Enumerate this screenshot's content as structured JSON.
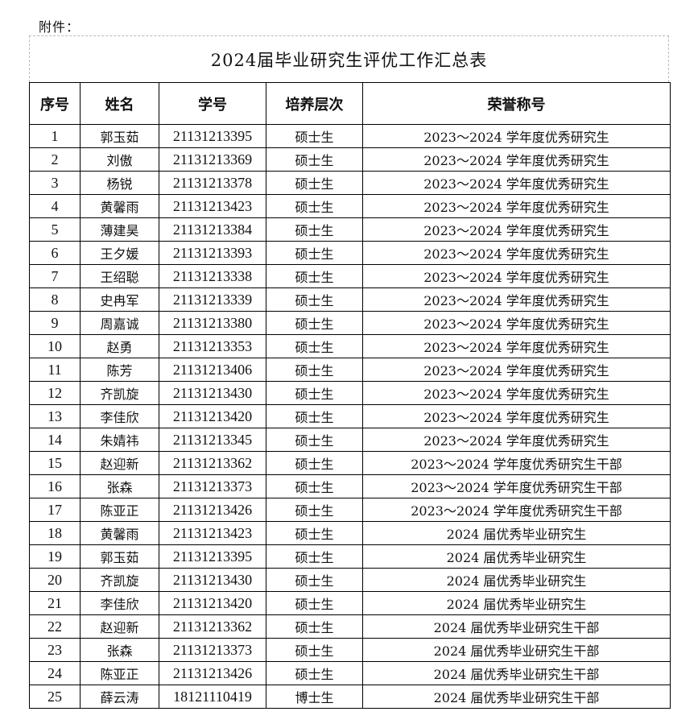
{
  "attachment_label": "附件：",
  "title": "2024届毕业研究生评优工作汇总表",
  "columns": [
    "序号",
    "姓名",
    "学号",
    "培养层次",
    "荣誉称号"
  ],
  "rows": [
    [
      "1",
      "郭玉茹",
      "21131213395",
      "硕士生",
      "2023～2024 学年度优秀研究生"
    ],
    [
      "2",
      "刘傲",
      "21131213369",
      "硕士生",
      "2023～2024 学年度优秀研究生"
    ],
    [
      "3",
      "杨锐",
      "21131213378",
      "硕士生",
      "2023～2024 学年度优秀研究生"
    ],
    [
      "4",
      "黄馨雨",
      "21131213423",
      "硕士生",
      "2023～2024 学年度优秀研究生"
    ],
    [
      "5",
      "薄建昊",
      "21131213384",
      "硕士生",
      "2023～2024 学年度优秀研究生"
    ],
    [
      "6",
      "王夕媛",
      "21131213393",
      "硕士生",
      "2023～2024 学年度优秀研究生"
    ],
    [
      "7",
      "王绍聪",
      "21131213338",
      "硕士生",
      "2023～2024 学年度优秀研究生"
    ],
    [
      "8",
      "史冉军",
      "21131213339",
      "硕士生",
      "2023～2024 学年度优秀研究生"
    ],
    [
      "9",
      "周嘉诚",
      "21131213380",
      "硕士生",
      "2023～2024 学年度优秀研究生"
    ],
    [
      "10",
      "赵勇",
      "21131213353",
      "硕士生",
      "2023～2024 学年度优秀研究生"
    ],
    [
      "11",
      "陈芳",
      "21131213406",
      "硕士生",
      "2023～2024 学年度优秀研究生"
    ],
    [
      "12",
      "齐凯旋",
      "21131213430",
      "硕士生",
      "2023～2024 学年度优秀研究生"
    ],
    [
      "13",
      "李佳欣",
      "21131213420",
      "硕士生",
      "2023～2024 学年度优秀研究生"
    ],
    [
      "14",
      "朱婧祎",
      "21131213345",
      "硕士生",
      "2023～2024 学年度优秀研究生"
    ],
    [
      "15",
      "赵迎新",
      "21131213362",
      "硕士生",
      "2023～2024 学年度优秀研究生干部"
    ],
    [
      "16",
      "张森",
      "21131213373",
      "硕士生",
      "2023～2024 学年度优秀研究生干部"
    ],
    [
      "17",
      "陈亚正",
      "21131213426",
      "硕士生",
      "2023～2024 学年度优秀研究生干部"
    ],
    [
      "18",
      "黄馨雨",
      "21131213423",
      "硕士生",
      "2024 届优秀毕业研究生"
    ],
    [
      "19",
      "郭玉茹",
      "21131213395",
      "硕士生",
      "2024 届优秀毕业研究生"
    ],
    [
      "20",
      "齐凯旋",
      "21131213430",
      "硕士生",
      "2024 届优秀毕业研究生"
    ],
    [
      "21",
      "李佳欣",
      "21131213420",
      "硕士生",
      "2024 届优秀毕业研究生"
    ],
    [
      "22",
      "赵迎新",
      "21131213362",
      "硕士生",
      "2024 届优秀毕业研究生干部"
    ],
    [
      "23",
      "张森",
      "21131213373",
      "硕士生",
      "2024 届优秀毕业研究生干部"
    ],
    [
      "24",
      "陈亚正",
      "21131213426",
      "硕士生",
      "2024 届优秀毕业研究生干部"
    ],
    [
      "25",
      "薛云涛",
      "18121110419",
      "博士生",
      "2024 届优秀毕业研究生干部"
    ]
  ]
}
